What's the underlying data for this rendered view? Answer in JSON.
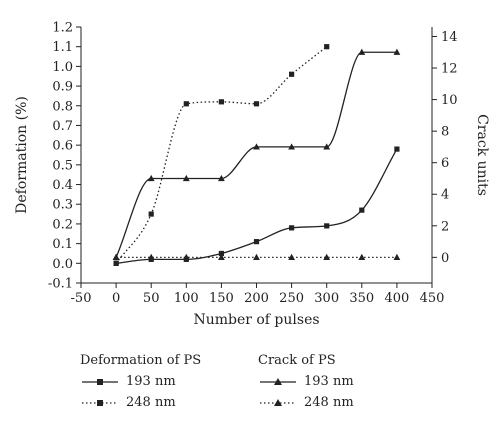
{
  "chart_data": {
    "type": "line",
    "xlabel": "Number of pulses",
    "ylabel_left": "Deformation (%)",
    "ylabel_right": "Crack units",
    "x_axis": {
      "min": -50,
      "max": 450,
      "ticks": [
        -50,
        0,
        50,
        100,
        150,
        200,
        250,
        300,
        350,
        400,
        450
      ]
    },
    "y_left_axis": {
      "min": -0.1,
      "max": 1.2,
      "ticks": [
        "-0.1",
        "0.0",
        "0.1",
        "0.2",
        "0.3",
        "0.4",
        "0.5",
        "0.6",
        "0.7",
        "0.8",
        "0.9",
        "1.0",
        "1.1",
        "1.2"
      ]
    },
    "y_right_axis": {
      "min": -1.625,
      "max": 14.6,
      "ticks": [
        0,
        2,
        4,
        6,
        8,
        10,
        12,
        14
      ]
    },
    "grid": false,
    "series": [
      {
        "name": "193 nm",
        "group": "Deformation of PS",
        "axis": "left",
        "marker": "square",
        "line": "solid",
        "points": [
          [
            0,
            0.0
          ],
          [
            50,
            0.02
          ],
          [
            100,
            0.02
          ],
          [
            150,
            0.05
          ],
          [
            200,
            0.11
          ],
          [
            250,
            0.18
          ],
          [
            300,
            0.19
          ],
          [
            350,
            0.27
          ],
          [
            400,
            0.58
          ]
        ]
      },
      {
        "name": "248 nm",
        "group": "Deformation of PS",
        "axis": "left",
        "marker": "square",
        "line": "dotted",
        "points": [
          [
            0,
            0.0
          ],
          [
            50,
            0.25
          ],
          [
            100,
            0.81
          ],
          [
            150,
            0.82
          ],
          [
            200,
            0.81
          ],
          [
            250,
            0.96
          ],
          [
            300,
            1.1
          ]
        ]
      },
      {
        "name": "193 nm",
        "group": "Crack of PS",
        "axis": "right",
        "marker": "triangle",
        "line": "solid",
        "points": [
          [
            0,
            0
          ],
          [
            50,
            5
          ],
          [
            100,
            5
          ],
          [
            150,
            5
          ],
          [
            200,
            7
          ],
          [
            250,
            7
          ],
          [
            300,
            7
          ],
          [
            350,
            13
          ],
          [
            400,
            13
          ]
        ]
      },
      {
        "name": "248 nm",
        "group": "Crack of PS",
        "axis": "right",
        "marker": "triangle",
        "line": "dotted",
        "points": [
          [
            0,
            0
          ],
          [
            50,
            0
          ],
          [
            100,
            0
          ],
          [
            150,
            0
          ],
          [
            200,
            0
          ],
          [
            250,
            0
          ],
          [
            300,
            0
          ],
          [
            350,
            0
          ],
          [
            400,
            0
          ]
        ]
      }
    ]
  },
  "legend": {
    "deformation_title": "Deformation of PS",
    "crack_title": "Crack of PS",
    "deformation_items": [
      "193 nm",
      "248 nm"
    ],
    "crack_items": [
      "193 nm",
      "248 nm"
    ]
  }
}
